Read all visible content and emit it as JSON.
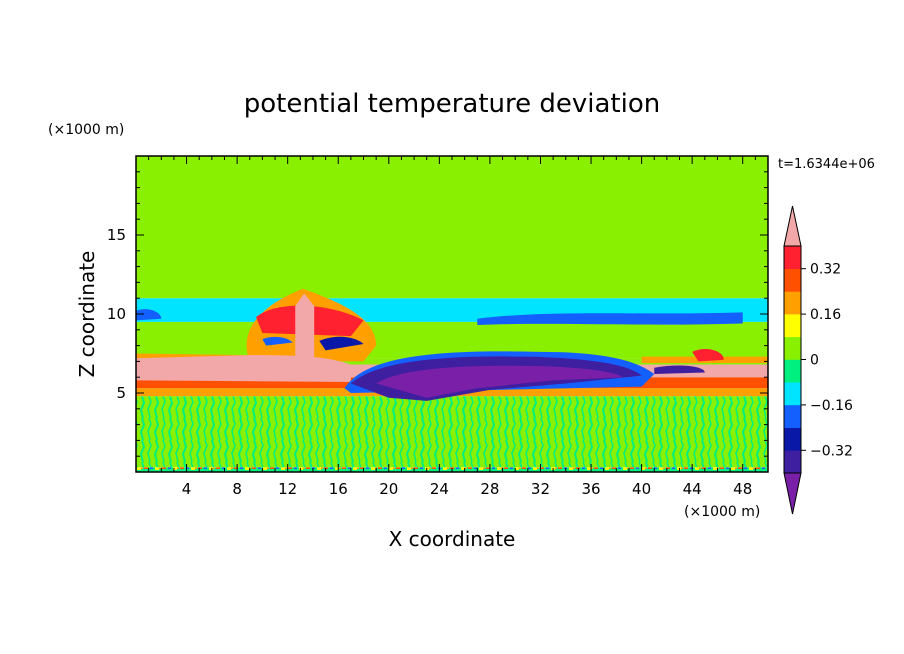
{
  "chart_data": {
    "type": "heatmap",
    "title": "potential temperature deviation",
    "xlabel": "X coordinate",
    "ylabel": "Z coordinate",
    "x_unit": "(×1000 m)",
    "y_unit": "(×1000 m)",
    "time_label": "t=1.6344e+06",
    "xlim": [
      0,
      50
    ],
    "ylim": [
      0,
      20
    ],
    "x_ticks": [
      4,
      8,
      12,
      16,
      20,
      24,
      28,
      32,
      36,
      40,
      44,
      48
    ],
    "y_ticks": [
      5,
      10,
      15
    ],
    "colorbar": {
      "levels": [
        -0.4,
        -0.32,
        -0.24,
        -0.16,
        -0.08,
        0,
        0.08,
        0.16,
        0.24,
        0.32,
        0.4
      ],
      "tick_labels": [
        "0.32",
        "0.16",
        "0",
        "−0.16",
        "−0.32"
      ],
      "tick_values": [
        0.32,
        0.16,
        0,
        -0.16,
        -0.32
      ],
      "colors_low_to_high": [
        "#7a1fa8",
        "#3d1fa0",
        "#0a18a8",
        "#1460ff",
        "#00e4ff",
        "#00f080",
        "#88f000",
        "#ffff00",
        "#ffa000",
        "#ff5000",
        "#ff2030",
        "#f2a8a8"
      ],
      "extend": "both"
    },
    "field_bands": [
      {
        "z": [
          0,
          0.3
        ],
        "value": 0.25,
        "pattern": "mixed"
      },
      {
        "z": [
          0.3,
          4.8
        ],
        "value": 0.02,
        "pattern": "noisy"
      },
      {
        "z": [
          4.8,
          5.3
        ],
        "value": 0.2
      },
      {
        "z": [
          5.3,
          5.6
        ],
        "value": 0.3
      },
      {
        "z": [
          5.6,
          6.0
        ],
        "value": 0.3
      },
      {
        "z": [
          6.0,
          7.2
        ],
        "value": 0.45
      },
      {
        "z": [
          7.2,
          9.5
        ],
        "value": 0.05
      },
      {
        "z": [
          9.5,
          11.0
        ],
        "value": -0.12
      },
      {
        "z": [
          11.0,
          12.5
        ],
        "value": 0.05
      },
      {
        "z": [
          12.5,
          20.0
        ],
        "value": 0.06
      }
    ],
    "features": [
      {
        "name": "cold anomaly",
        "x": [
          17,
          40
        ],
        "z": [
          4.5,
          7.5
        ],
        "value": -0.38
      },
      {
        "name": "warm plume",
        "x": [
          10,
          18
        ],
        "z": [
          6,
          11
        ],
        "value": 0.4
      }
    ]
  }
}
